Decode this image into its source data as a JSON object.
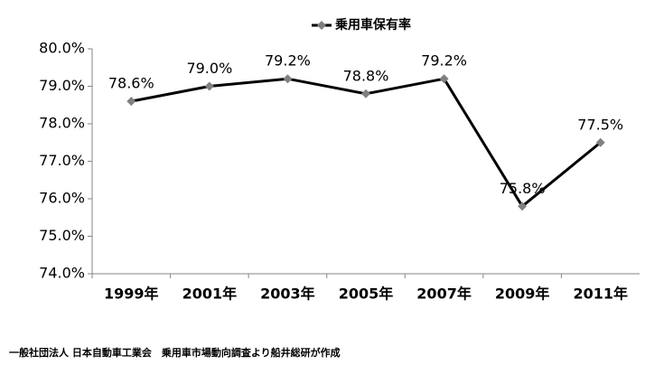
{
  "chart_data": {
    "type": "line",
    "title": "乗用車保有率",
    "categories": [
      "1999年",
      "2001年",
      "2003年",
      "2005年",
      "2007年",
      "2009年",
      "2011年"
    ],
    "series": [
      {
        "name": "乗用車保有率",
        "color": "#000000",
        "marker_color": "#808080",
        "values": [
          78.6,
          79.0,
          79.2,
          78.8,
          79.2,
          75.8,
          77.5
        ],
        "value_labels": [
          "78.6%",
          "79.0%",
          "79.2%",
          "78.8%",
          "79.2%",
          "75.8%",
          "77.5%"
        ]
      }
    ],
    "ylim": [
      74,
      80
    ],
    "yticks": [
      {
        "value": 74,
        "label": "74.0%"
      },
      {
        "value": 75,
        "label": "75.0%"
      },
      {
        "value": 76,
        "label": "76.0%"
      },
      {
        "value": 77,
        "label": "77.0%"
      },
      {
        "value": 78,
        "label": "78.0%"
      },
      {
        "value": 79,
        "label": "79.0%"
      },
      {
        "value": 80,
        "label": "80.0%"
      }
    ],
    "grid": false,
    "legend": "top",
    "source": "一般社団法人 日本自動車工業会　乗用車市場動向調査より船井総研が作成"
  }
}
